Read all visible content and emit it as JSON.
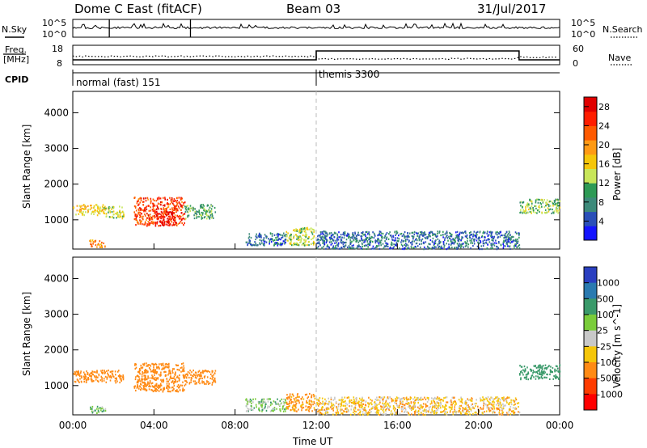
{
  "header": {
    "title": "Dome C East (fitACF)",
    "beam": "Beam 03",
    "date": "31/Jul/2017"
  },
  "panels": {
    "nsky_label": "N.Sky",
    "nsky_ticks": [
      "10^5",
      "10^0"
    ],
    "nsearch_label": "N.Search",
    "nsearch_ticks": [
      "10^5",
      "10^0"
    ],
    "freq_label_1": "Freq.",
    "freq_label_2": "[MHz]",
    "freq_ticks": [
      "18",
      "8"
    ],
    "nave_label": "Nave",
    "nave_ticks": [
      "60",
      "0"
    ],
    "cpid_label": "CPID",
    "cpid_1": "normal (fast) 151",
    "cpid_2": "themis 3300"
  },
  "axes": {
    "xticks": [
      "00:00",
      "04:00",
      "08:00",
      "12:00",
      "16:00",
      "20:00",
      "00:00"
    ],
    "xlabel": "Time UT",
    "ylabel": "Slant Range [km]",
    "yticks": [
      "1000",
      "2000",
      "3000",
      "4000"
    ]
  },
  "colorbars": {
    "power": {
      "label": "Power [dB]",
      "ticks": [
        "4",
        "8",
        "12",
        "16",
        "20",
        "24",
        "28"
      ],
      "colors": [
        "#1414ff",
        "#2a4fb8",
        "#3d8a7a",
        "#2e9a55",
        "#c8e65a",
        "#f5c60a",
        "#ff9a14",
        "#ff5a00",
        "#ff1e00",
        "#e00000"
      ]
    },
    "velocity": {
      "label": "Velocity [m s^-1]",
      "ticks": [
        "1000",
        "500",
        "100",
        "25",
        "-25",
        "-100",
        "-500",
        "-1000"
      ],
      "colors": [
        "#2a3fc0",
        "#2a7ab0",
        "#3a9a6a",
        "#7acc3a",
        "#c8c8c8",
        "#f5c60a",
        "#ff8a14",
        "#ff3c00",
        "#ff0000"
      ]
    }
  },
  "chart_data": [
    {
      "type": "heatmap",
      "title": "Power",
      "xlabel": "Time UT",
      "ylabel": "Slant Range [km]",
      "xlim": [
        0,
        24
      ],
      "ylim": [
        180,
        4600
      ],
      "colorbar_label": "Power [dB]",
      "colorbar_range": [
        0,
        30
      ],
      "scatter_regions": [
        {
          "t": [
            0.0,
            1.5
          ],
          "range_km": [
            1150,
            1450
          ],
          "power_db": 16
        },
        {
          "t": [
            1.5,
            2.5
          ],
          "range_km": [
            1050,
            1400
          ],
          "power_db": 14
        },
        {
          "t": [
            3.0,
            5.5
          ],
          "range_km": [
            850,
            1650
          ],
          "power_db": 24
        },
        {
          "t": [
            4.0,
            5.0
          ],
          "range_km": [
            850,
            1250
          ],
          "power_db": 28
        },
        {
          "t": [
            5.5,
            7.0
          ],
          "range_km": [
            1050,
            1450
          ],
          "power_db": 10
        },
        {
          "t": [
            0.8,
            1.6
          ],
          "range_km": [
            250,
            450
          ],
          "power_db": 20
        },
        {
          "t": [
            8.5,
            10.5
          ],
          "range_km": [
            300,
            650
          ],
          "power_db": 6
        },
        {
          "t": [
            10.5,
            11.9
          ],
          "range_km": [
            300,
            800
          ],
          "power_db": 14
        },
        {
          "t": [
            12.0,
            22.0
          ],
          "range_km": [
            200,
            700
          ],
          "power_db": 6
        },
        {
          "t": [
            22.0,
            24.0
          ],
          "range_km": [
            1200,
            1600
          ],
          "power_db": 12
        }
      ]
    },
    {
      "type": "heatmap",
      "title": "Velocity",
      "xlabel": "Time UT",
      "ylabel": "Slant Range [km]",
      "xlim": [
        0,
        24
      ],
      "ylim": [
        180,
        4600
      ],
      "colorbar_label": "Velocity [m s^-1]",
      "scatter_regions": [
        {
          "t": [
            0.0,
            2.5
          ],
          "range_km": [
            1100,
            1450
          ],
          "velocity": -300
        },
        {
          "t": [
            3.0,
            5.5
          ],
          "range_km": [
            850,
            1650
          ],
          "velocity": -400
        },
        {
          "t": [
            5.5,
            7.0
          ],
          "range_km": [
            1050,
            1450
          ],
          "velocity": -200
        },
        {
          "t": [
            0.8,
            1.6
          ],
          "range_km": [
            250,
            450
          ],
          "velocity": 80
        },
        {
          "t": [
            8.5,
            10.5
          ],
          "range_km": [
            300,
            650
          ],
          "velocity": 60
        },
        {
          "t": [
            10.5,
            11.9
          ],
          "range_km": [
            300,
            800
          ],
          "velocity": -150
        },
        {
          "t": [
            12.0,
            22.0
          ],
          "range_km": [
            200,
            700
          ],
          "velocity": -60
        },
        {
          "t": [
            22.0,
            24.0
          ],
          "range_km": [
            1200,
            1600
          ],
          "velocity": 200
        }
      ]
    }
  ]
}
